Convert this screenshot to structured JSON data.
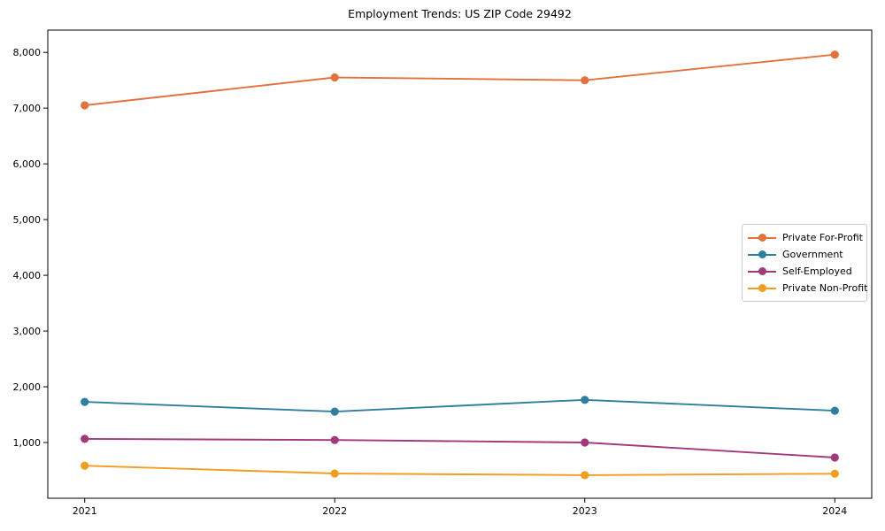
{
  "chart_data": {
    "type": "line",
    "title": "Employment Trends: US ZIP Code 29492",
    "x": [
      "2021",
      "2022",
      "2023",
      "2024"
    ],
    "series": [
      {
        "name": "Private For-Profit",
        "color": "#E2713C",
        "values": [
          7050,
          7550,
          7500,
          7960
        ]
      },
      {
        "name": "Government",
        "color": "#2E7F9E",
        "values": [
          1730,
          1555,
          1765,
          1570
        ]
      },
      {
        "name": "Self-Employed",
        "color": "#A13A7B",
        "values": [
          1065,
          1045,
          1000,
          730
        ]
      },
      {
        "name": "Private Non-Profit",
        "color": "#F09D20",
        "values": [
          585,
          445,
          415,
          440
        ]
      }
    ],
    "xlabel": "",
    "ylabel": "",
    "ylim": [
      0,
      8400
    ],
    "yticks": [
      1000,
      2000,
      3000,
      4000,
      5000,
      6000,
      7000,
      8000
    ],
    "grid": false,
    "legend_position": "center-right",
    "marker": "circle",
    "background_color": "#FFFFFF",
    "axis_color": "#000000",
    "tick_label_color": "#000000"
  }
}
